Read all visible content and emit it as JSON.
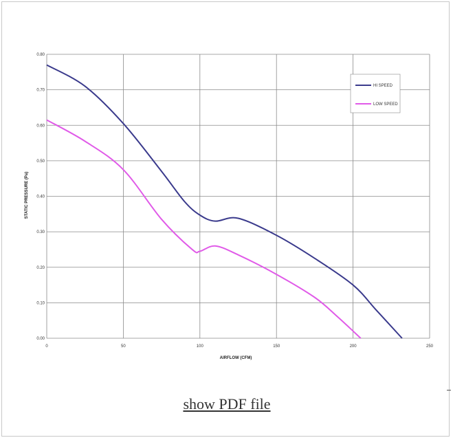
{
  "link": {
    "label": "show PDF file"
  },
  "chart_data": {
    "type": "line",
    "xlabel": "AIRFLOW (CFM)",
    "ylabel": "STATIC PRESSURE (Pa)",
    "xlim": [
      0,
      250
    ],
    "ylim": [
      0,
      0.8
    ],
    "x_ticks": [
      0,
      50,
      100,
      150,
      200,
      250
    ],
    "x_tick_labels": [
      "0",
      "50",
      "100",
      "150",
      "200",
      "250"
    ],
    "y_ticks": [
      0,
      0.1,
      0.2,
      0.3,
      0.4,
      0.5,
      0.6,
      0.7,
      0.8
    ],
    "y_tick_labels": [
      "0.00",
      "0.10",
      "0.20",
      "0.30",
      "0.40",
      "0.50",
      "0.60",
      "0.70",
      "0.80"
    ],
    "grid": true,
    "legend_position": "top-right",
    "series": [
      {
        "name": "HI SPEED",
        "color": "#3a3a8c",
        "points": [
          [
            0,
            0.77
          ],
          [
            25,
            0.71
          ],
          [
            50,
            0.605
          ],
          [
            75,
            0.47
          ],
          [
            90,
            0.385
          ],
          [
            100,
            0.347
          ],
          [
            110,
            0.33
          ],
          [
            125,
            0.338
          ],
          [
            150,
            0.29
          ],
          [
            175,
            0.225
          ],
          [
            200,
            0.15
          ],
          [
            215,
            0.08
          ],
          [
            232,
            0.0
          ]
        ]
      },
      {
        "name": "LOW SPEED",
        "color": "#e05ae8",
        "points": [
          [
            0,
            0.615
          ],
          [
            25,
            0.555
          ],
          [
            50,
            0.475
          ],
          [
            75,
            0.335
          ],
          [
            95,
            0.25
          ],
          [
            100,
            0.245
          ],
          [
            110,
            0.26
          ],
          [
            125,
            0.235
          ],
          [
            150,
            0.18
          ],
          [
            175,
            0.115
          ],
          [
            190,
            0.06
          ],
          [
            205,
            0.0
          ]
        ]
      }
    ]
  }
}
